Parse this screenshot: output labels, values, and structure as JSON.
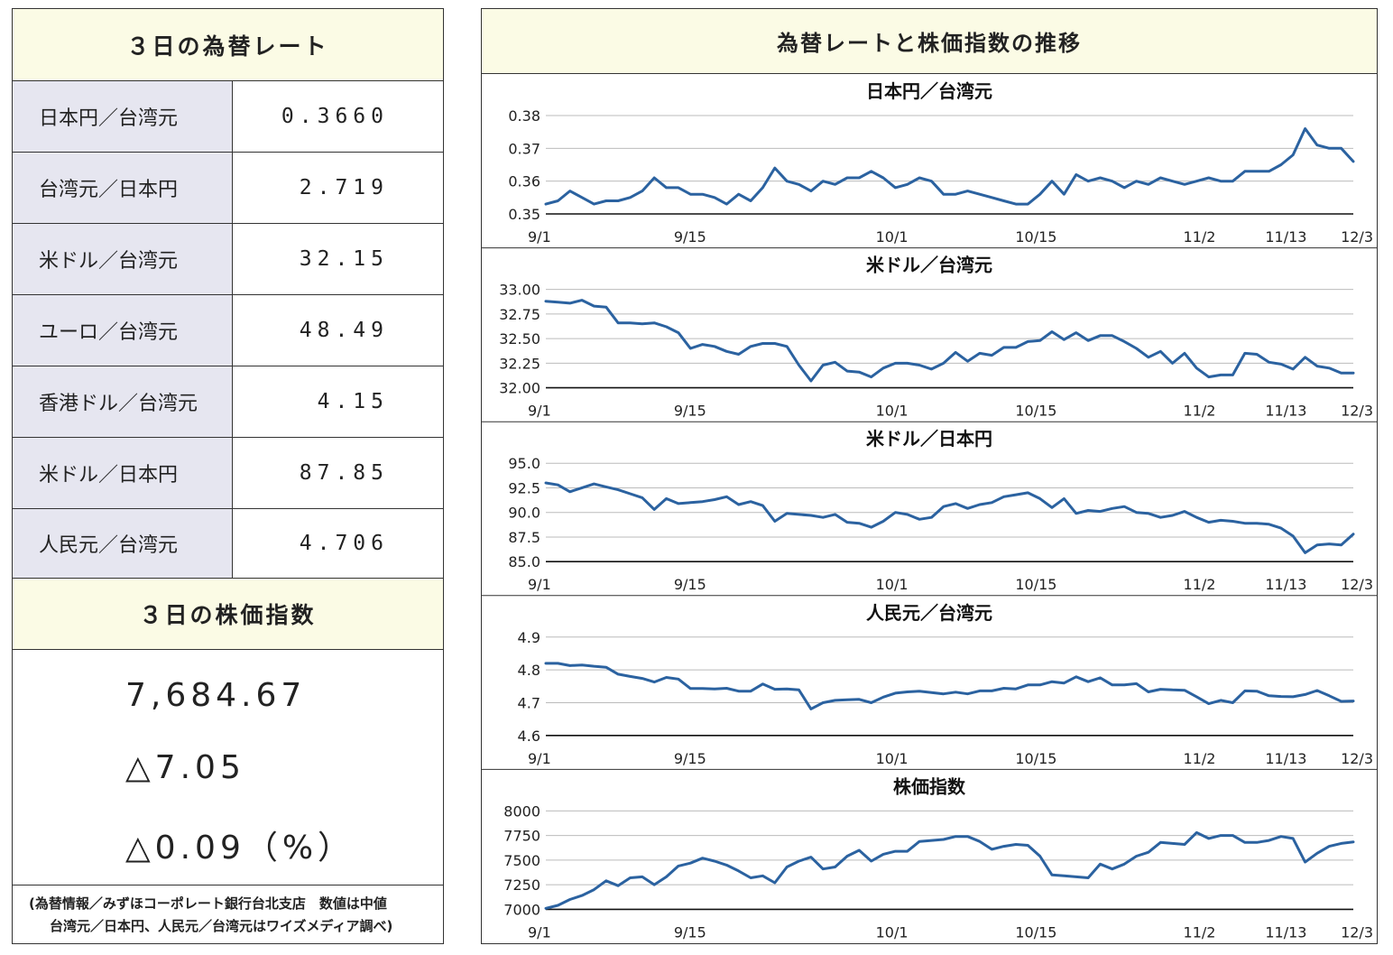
{
  "rates_panel": {
    "title": "３日の為替レート",
    "rows": [
      {
        "label": "日本円／台湾元",
        "value": "0.3660"
      },
      {
        "label": "台湾元／日本円",
        "value": "2.719"
      },
      {
        "label": "米ドル／台湾元",
        "value": "32.15"
      },
      {
        "label": "ユーロ／台湾元",
        "value": "48.49"
      },
      {
        "label": "香港ドル／台湾元",
        "value": "4.15"
      },
      {
        "label": "米ドル／日本円",
        "value": "87.85"
      },
      {
        "label": "人民元／台湾元",
        "value": "4.706"
      }
    ]
  },
  "stock_panel": {
    "title": "３日の株価指数",
    "index_value": "7,684.67",
    "change": "△7.05",
    "change_pct": "△0.09（%）"
  },
  "source": {
    "line1": "(為替情報／みずほコーポレート銀行台北支店　数値は中値",
    "line2": "台湾元／日本円、人民元／台湾元はワイズメディア調べ)"
  },
  "charts_panel": {
    "title": "為替レートと株価指数の推移"
  },
  "chart_data": [
    {
      "type": "line",
      "title": "日本円／台湾元",
      "x_tick_labels": [
        "9/1",
        "9/15",
        "10/1",
        "10/15",
        "11/2",
        "11/13",
        "12/3"
      ],
      "x_tick_positions": [
        0,
        15,
        36,
        51,
        68,
        77,
        84
      ],
      "ylim": [
        0.35,
        0.38
      ],
      "y_ticks": [
        "0.35",
        "0.36",
        "0.37",
        "0.38"
      ],
      "color": "#2b62a0",
      "values": [
        0.353,
        0.354,
        0.357,
        0.355,
        0.353,
        0.354,
        0.354,
        0.355,
        0.357,
        0.361,
        0.358,
        0.358,
        0.356,
        0.356,
        0.355,
        0.353,
        0.356,
        0.354,
        0.358,
        0.364,
        0.36,
        0.359,
        0.357,
        0.36,
        0.359,
        0.361,
        0.361,
        0.363,
        0.361,
        0.358,
        0.359,
        0.361,
        0.36,
        0.356,
        0.356,
        0.357,
        0.356,
        0.355,
        0.354,
        0.353,
        0.353,
        0.356,
        0.36,
        0.356,
        0.362,
        0.36,
        0.361,
        0.36,
        0.358,
        0.36,
        0.359,
        0.361,
        0.36,
        0.359,
        0.36,
        0.361,
        0.36,
        0.36,
        0.363,
        0.363,
        0.363,
        0.365,
        0.368,
        0.376,
        0.371,
        0.37,
        0.37,
        0.366
      ]
    },
    {
      "type": "line",
      "title": "米ドル／台湾元",
      "x_tick_labels": [
        "9/1",
        "9/15",
        "10/1",
        "10/15",
        "11/2",
        "11/13",
        "12/3"
      ],
      "x_tick_positions": [
        0,
        15,
        36,
        51,
        68,
        77,
        84
      ],
      "ylim": [
        32.0,
        33.0
      ],
      "y_ticks": [
        "32.00",
        "32.25",
        "32.50",
        "32.75",
        "33.00"
      ],
      "color": "#2b62a0",
      "values": [
        32.88,
        32.87,
        32.86,
        32.89,
        32.83,
        32.82,
        32.66,
        32.66,
        32.65,
        32.66,
        32.62,
        32.56,
        32.4,
        32.44,
        32.42,
        32.37,
        32.34,
        32.42,
        32.45,
        32.45,
        32.42,
        32.23,
        32.07,
        32.23,
        32.26,
        32.17,
        32.16,
        32.11,
        32.2,
        32.25,
        32.25,
        32.23,
        32.19,
        32.25,
        32.36,
        32.27,
        32.35,
        32.33,
        32.41,
        32.41,
        32.47,
        32.48,
        32.57,
        32.49,
        32.56,
        32.48,
        32.53,
        32.53,
        32.47,
        32.4,
        32.31,
        32.37,
        32.25,
        32.35,
        32.2,
        32.11,
        32.13,
        32.13,
        32.35,
        32.34,
        32.26,
        32.24,
        32.19,
        32.31,
        32.22,
        32.2,
        32.15,
        32.15
      ]
    },
    {
      "type": "line",
      "title": "米ドル／日本円",
      "x_tick_labels": [
        "9/1",
        "9/15",
        "10/1",
        "10/15",
        "11/2",
        "11/13",
        "12/3"
      ],
      "x_tick_positions": [
        0,
        15,
        36,
        51,
        68,
        77,
        84
      ],
      "ylim": [
        85.0,
        95.0
      ],
      "y_ticks": [
        "85.0",
        "87.5",
        "90.0",
        "92.5",
        "95.0"
      ],
      "color": "#2b62a0",
      "values": [
        93.0,
        92.8,
        92.1,
        92.5,
        92.9,
        92.6,
        92.3,
        91.9,
        91.5,
        90.3,
        91.4,
        90.9,
        91.0,
        91.1,
        91.3,
        91.6,
        90.8,
        91.1,
        90.7,
        89.1,
        89.9,
        89.8,
        89.7,
        89.5,
        89.8,
        89.0,
        88.9,
        88.5,
        89.1,
        90.0,
        89.8,
        89.3,
        89.5,
        90.6,
        90.9,
        90.4,
        90.8,
        91.0,
        91.6,
        91.8,
        92.0,
        91.4,
        90.5,
        91.4,
        89.9,
        90.2,
        90.1,
        90.4,
        90.6,
        90.0,
        89.9,
        89.5,
        89.7,
        90.1,
        89.5,
        89.0,
        89.2,
        89.1,
        88.9,
        88.9,
        88.8,
        88.4,
        87.6,
        85.9,
        86.7,
        86.8,
        86.7,
        87.8
      ]
    },
    {
      "type": "line",
      "title": "人民元／台湾元",
      "x_tick_labels": [
        "9/1",
        "9/15",
        "10/1",
        "10/15",
        "11/2",
        "11/13",
        "12/3"
      ],
      "x_tick_positions": [
        0,
        15,
        36,
        51,
        68,
        77,
        84
      ],
      "ylim": [
        4.6,
        4.9
      ],
      "y_ticks": [
        "4.6",
        "4.7",
        "4.8",
        "4.9"
      ],
      "color": "#2b62a0",
      "values": [
        4.82,
        4.82,
        4.813,
        4.815,
        4.811,
        4.808,
        4.787,
        4.78,
        4.774,
        4.763,
        4.777,
        4.772,
        4.743,
        4.743,
        4.742,
        4.744,
        4.735,
        4.735,
        4.757,
        4.741,
        4.742,
        4.739,
        4.681,
        4.7,
        4.707,
        4.709,
        4.71,
        4.7,
        4.717,
        4.729,
        4.733,
        4.735,
        4.731,
        4.727,
        4.732,
        4.727,
        4.736,
        4.736,
        4.744,
        4.742,
        4.754,
        4.754,
        4.764,
        4.76,
        4.779,
        4.764,
        4.776,
        4.754,
        4.754,
        4.758,
        4.733,
        4.741,
        4.739,
        4.738,
        4.718,
        4.697,
        4.707,
        4.7,
        4.736,
        4.735,
        4.721,
        4.719,
        4.718,
        4.725,
        4.737,
        4.721,
        4.704,
        4.705
      ]
    },
    {
      "type": "line",
      "title": "株価指数",
      "x_tick_labels": [
        "9/1",
        "9/15",
        "10/1",
        "10/15",
        "11/2",
        "11/13",
        "12/3"
      ],
      "x_tick_positions": [
        0,
        15,
        36,
        51,
        68,
        77,
        84
      ],
      "ylim": [
        7000,
        8000
      ],
      "y_ticks": [
        "7000",
        "7250",
        "7500",
        "7750",
        "8000"
      ],
      "color": "#2b62a0",
      "values": [
        7010,
        7040,
        7100,
        7140,
        7200,
        7290,
        7240,
        7320,
        7330,
        7250,
        7330,
        7440,
        7470,
        7520,
        7490,
        7450,
        7390,
        7320,
        7340,
        7270,
        7430,
        7490,
        7530,
        7410,
        7430,
        7540,
        7600,
        7490,
        7560,
        7590,
        7590,
        7690,
        7700,
        7710,
        7740,
        7740,
        7690,
        7610,
        7640,
        7660,
        7650,
        7540,
        7350,
        7340,
        7330,
        7320,
        7460,
        7410,
        7460,
        7540,
        7580,
        7680,
        7670,
        7660,
        7780,
        7720,
        7750,
        7750,
        7680,
        7680,
        7700,
        7740,
        7720,
        7480,
        7570,
        7640,
        7670,
        7685
      ]
    }
  ]
}
